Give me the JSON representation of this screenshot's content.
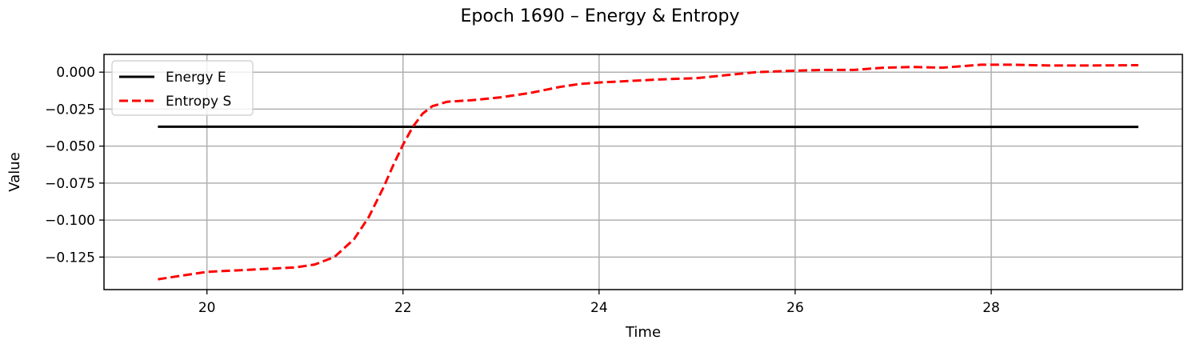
{
  "chart_data": {
    "type": "line",
    "title": "Epoch 1690 – Energy & Entropy",
    "xlabel": "Time",
    "ylabel": "Value",
    "xlim": [
      18.95,
      29.95
    ],
    "ylim": [
      -0.147,
      0.012
    ],
    "xticks": [
      20,
      22,
      24,
      26,
      28
    ],
    "xtick_labels": [
      "20",
      "22",
      "24",
      "26",
      "28"
    ],
    "yticks": [
      0.0,
      -0.025,
      -0.05,
      -0.075,
      -0.1,
      -0.125
    ],
    "ytick_labels": [
      "0.000",
      "−0.025",
      "−0.050",
      "−0.075",
      "−0.100",
      "−0.125"
    ],
    "grid": true,
    "legend_position": "top-left",
    "series": [
      {
        "name": "Energy E",
        "color": "#000000",
        "style": "solid",
        "x": [
          19.5,
          21.0,
          22.5,
          24.0,
          25.5,
          27.0,
          28.5,
          29.5
        ],
        "y": [
          -0.0369,
          -0.0369,
          -0.037,
          -0.037,
          -0.037,
          -0.037,
          -0.037,
          -0.037
        ]
      },
      {
        "name": "Entropy S",
        "color": "#ff0000",
        "style": "dashed",
        "x": [
          19.5,
          19.8,
          20.0,
          20.3,
          20.6,
          20.9,
          21.1,
          21.3,
          21.5,
          21.65,
          21.8,
          21.9,
          22.0,
          22.1,
          22.2,
          22.3,
          22.45,
          22.7,
          23.0,
          23.3,
          23.6,
          23.8,
          24.0,
          24.3,
          24.6,
          25.0,
          25.3,
          25.6,
          26.0,
          26.3,
          26.6,
          26.9,
          27.2,
          27.5,
          27.9,
          28.2,
          28.6,
          29.0,
          29.5
        ],
        "y": [
          -0.14,
          -0.137,
          -0.135,
          -0.134,
          -0.133,
          -0.132,
          -0.13,
          -0.125,
          -0.113,
          -0.098,
          -0.078,
          -0.063,
          -0.049,
          -0.037,
          -0.028,
          -0.023,
          -0.02,
          -0.019,
          -0.017,
          -0.014,
          -0.01,
          -0.008,
          -0.007,
          -0.006,
          -0.005,
          -0.004,
          -0.002,
          0.0,
          0.001,
          0.0015,
          0.0015,
          0.003,
          0.0035,
          0.003,
          0.005,
          0.005,
          0.0045,
          0.0045,
          0.0047
        ]
      }
    ]
  }
}
